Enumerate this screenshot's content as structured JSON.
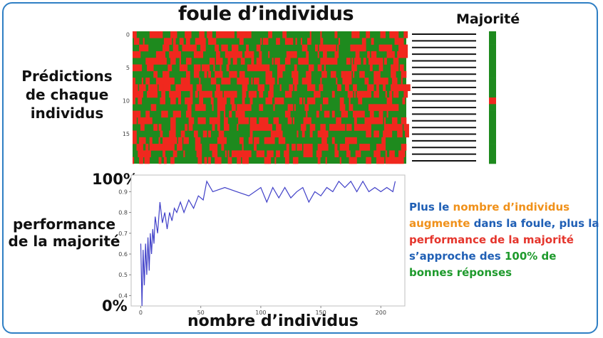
{
  "labels": {
    "title": "foule d’individus",
    "majority": "Majorité",
    "predictions": "Prédictions de chaque individus",
    "performance": "performance de la majorité",
    "y_top": "100%",
    "y_bottom": "0%",
    "xlabel": "nombre d’individus"
  },
  "message": [
    {
      "text": "Plus le ",
      "color": "blue"
    },
    {
      "text": "nombre d’individus ",
      "color": "orange"
    },
    {
      "text": "augmente",
      "color": "orange"
    },
    {
      "text": " dans la foule, plus la ",
      "color": "blue"
    },
    {
      "text": "performance de la ",
      "color": "red"
    },
    {
      "text": "majorité",
      "color": "red"
    },
    {
      "text": " s’approche des ",
      "color": "blue"
    },
    {
      "text": "100% de bonnes réponses",
      "color": "green"
    }
  ],
  "colors": {
    "correct": "#1e8a1e",
    "wrong": "#f0281e",
    "line": "#4040c8",
    "accent": "#2f7fc4"
  },
  "chart_data": [
    {
      "type": "heatmap",
      "rows": 20,
      "columns": 210,
      "row_ticks": [
        0,
        5,
        10,
        15
      ],
      "values": "individual predictions: correct (green) / wrong (red)"
    },
    {
      "type": "heatmap",
      "rows": 20,
      "columns": 1,
      "wrong_rows": [
        10
      ]
    },
    {
      "type": "line",
      "ylim": [
        0.35,
        0.98
      ],
      "xlim": [
        -8,
        220
      ],
      "yticks": [
        0.4,
        0.5,
        0.6,
        0.7,
        0.8,
        0.9
      ],
      "xticks": [
        0,
        50,
        100,
        150,
        200
      ],
      "series": [
        {
          "x": [
            0,
            1,
            2,
            3,
            4,
            5,
            6,
            7,
            8,
            9,
            10,
            11,
            12,
            14,
            16,
            18,
            20,
            22,
            24,
            26,
            28,
            30,
            33,
            36,
            40,
            44,
            48,
            52,
            55,
            60,
            70,
            80,
            90,
            100,
            105,
            110,
            115,
            120,
            125,
            130,
            135,
            140,
            145,
            150,
            155,
            160,
            165,
            170,
            175,
            180,
            185,
            190,
            195,
            200,
            205,
            210,
            212
          ],
          "y": [
            0.65,
            0.35,
            0.62,
            0.45,
            0.65,
            0.5,
            0.68,
            0.52,
            0.7,
            0.6,
            0.72,
            0.65,
            0.78,
            0.7,
            0.85,
            0.75,
            0.8,
            0.72,
            0.8,
            0.76,
            0.82,
            0.8,
            0.85,
            0.8,
            0.86,
            0.82,
            0.88,
            0.86,
            0.95,
            0.9,
            0.92,
            0.9,
            0.88,
            0.92,
            0.85,
            0.92,
            0.87,
            0.92,
            0.87,
            0.9,
            0.92,
            0.85,
            0.9,
            0.88,
            0.92,
            0.9,
            0.95,
            0.92,
            0.95,
            0.9,
            0.95,
            0.9,
            0.92,
            0.9,
            0.92,
            0.9,
            0.95
          ]
        }
      ]
    }
  ]
}
